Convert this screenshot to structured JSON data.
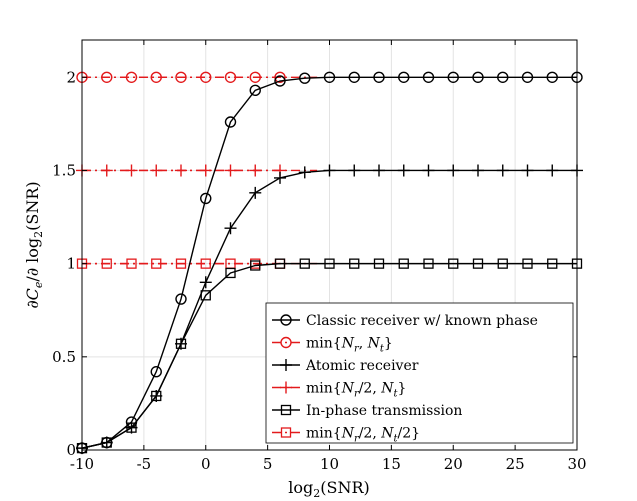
{
  "chart_data": {
    "type": "line",
    "title": "",
    "xlabel": "log₂(SNR)",
    "ylabel": "∂Cₑ/∂log₂(SNR)",
    "xlim": [
      -10,
      30
    ],
    "ylim": [
      0,
      2.2
    ],
    "grid": true,
    "legend_position": "bottom-right",
    "x_ticks": [
      -10,
      -5,
      0,
      5,
      10,
      15,
      20,
      25,
      30
    ],
    "x_tick_labels": [
      "-10",
      "-5",
      "0",
      "5",
      "10",
      "15",
      "20",
      "25",
      "30"
    ],
    "y_ticks": [
      0,
      0.5,
      1,
      1.5,
      2
    ],
    "y_tick_labels": [
      "0",
      "0.5",
      "1",
      "1.5",
      "2"
    ],
    "series": [
      {
        "name": "Classic receiver w/ known phase",
        "color": "#000000",
        "line_style": "solid",
        "marker": "circle",
        "x": [
          -10,
          -8,
          -6,
          -4,
          -2,
          0,
          2,
          4,
          6,
          8,
          10,
          12,
          14,
          16,
          18,
          20,
          22,
          24,
          26,
          28,
          30
        ],
        "y": [
          0.01,
          0.04,
          0.15,
          0.42,
          0.81,
          1.35,
          1.76,
          1.93,
          1.98,
          1.995,
          2,
          2,
          2,
          2,
          2,
          2,
          2,
          2,
          2,
          2,
          2
        ]
      },
      {
        "name": "min{N_r, N_t}",
        "color": "#e31a1c",
        "line_style": "dashdot",
        "marker": "circle",
        "x": [
          -10,
          -8,
          -6,
          -4,
          -2,
          0,
          2,
          4,
          6
        ],
        "y": [
          2,
          2,
          2,
          2,
          2,
          2,
          2,
          2,
          2
        ]
      },
      {
        "name": "Atomic receiver",
        "color": "#000000",
        "line_style": "solid",
        "marker": "plus",
        "x": [
          -10,
          -8,
          -6,
          -4,
          -2,
          0,
          2,
          4,
          6,
          8,
          10,
          12,
          14,
          16,
          18,
          20,
          22,
          24,
          26,
          28,
          30
        ],
        "y": [
          0.01,
          0.04,
          0.12,
          0.29,
          0.57,
          0.9,
          1.19,
          1.38,
          1.46,
          1.49,
          1.5,
          1.5,
          1.5,
          1.5,
          1.5,
          1.5,
          1.5,
          1.5,
          1.5,
          1.5,
          1.5
        ]
      },
      {
        "name": "min{N_r/2, N_t}",
        "color": "#e31a1c",
        "line_style": "dashdot",
        "marker": "plus",
        "x": [
          -10,
          -8,
          -6,
          -4,
          -2,
          0,
          2,
          4,
          6
        ],
        "y": [
          1.5,
          1.5,
          1.5,
          1.5,
          1.5,
          1.5,
          1.5,
          1.5,
          1.5
        ]
      },
      {
        "name": "In-phase transmission",
        "color": "#000000",
        "line_style": "solid",
        "marker": "square",
        "x": [
          -10,
          -8,
          -6,
          -4,
          -2,
          0,
          2,
          4,
          6,
          8,
          10,
          12,
          14,
          16,
          18,
          20,
          22,
          24,
          26,
          28,
          30
        ],
        "y": [
          0.01,
          0.04,
          0.12,
          0.29,
          0.57,
          0.83,
          0.95,
          0.99,
          1,
          1,
          1,
          1,
          1,
          1,
          1,
          1,
          1,
          1,
          1,
          1,
          1
        ]
      },
      {
        "name": "min{N_r/2, N_t/2}",
        "color": "#e31a1c",
        "line_style": "dashdot",
        "marker": "square",
        "x": [
          -10,
          -8,
          -6,
          -4,
          -2,
          0,
          2,
          4,
          6
        ],
        "y": [
          1,
          1,
          1,
          1,
          1,
          1,
          1,
          1,
          1
        ]
      }
    ],
    "reference_lines": [
      {
        "y": 2,
        "x_range": [
          -10,
          9
        ],
        "color": "#e31a1c"
      },
      {
        "y": 1.5,
        "x_range": [
          -10,
          9
        ],
        "color": "#e31a1c"
      },
      {
        "y": 1,
        "x_range": [
          -10,
          9
        ],
        "color": "#e31a1c"
      }
    ]
  }
}
